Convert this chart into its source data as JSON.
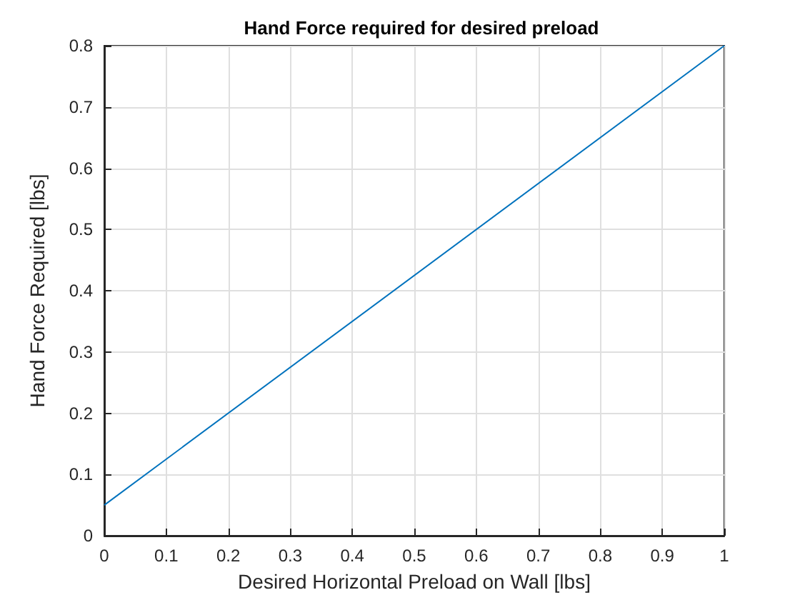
{
  "chart_data": {
    "type": "line",
    "title": "Hand Force required for desired preload",
    "xlabel": "Desired Horizontal Preload on Wall [lbs]",
    "ylabel": "Hand Force Required [lbs]",
    "x": [
      0,
      1
    ],
    "series": [
      {
        "color": "#0072bd",
        "values": [
          0.05,
          0.8
        ]
      }
    ],
    "xlim": [
      0,
      1
    ],
    "xticks": [
      0,
      0.1,
      0.2,
      0.3,
      0.4,
      0.5,
      0.6,
      0.7,
      0.8,
      0.9,
      1
    ],
    "ylim": [
      0,
      0.8
    ],
    "yticks": [
      0,
      0.1,
      0.2,
      0.3,
      0.4,
      0.5,
      0.6,
      0.7,
      0.8
    ],
    "grid": true,
    "marker": "none",
    "line_style": "solid"
  }
}
